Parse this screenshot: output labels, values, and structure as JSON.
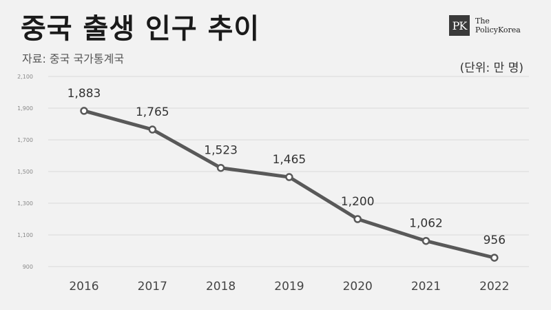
{
  "header": {
    "title": "중국 출생 인구 추이",
    "source": "자료: 중국 국가통계국",
    "unit": "(단위: 만 명)"
  },
  "logo": {
    "mark": "PK",
    "line1": "The",
    "line2": "PolicyKorea"
  },
  "chart_data": {
    "type": "line",
    "categories": [
      "2016",
      "2017",
      "2018",
      "2019",
      "2020",
      "2021",
      "2022"
    ],
    "series": [
      {
        "values": [
          1883,
          1765,
          1523,
          1465,
          1200,
          1062,
          956
        ]
      }
    ],
    "data_labels": [
      "1,883",
      "1,765",
      "1,523",
      "1,465",
      "1,200",
      "1,062",
      "956"
    ],
    "yticks": [
      900,
      1100,
      1300,
      1500,
      1700,
      1900,
      2100
    ],
    "ytick_labels": [
      "900",
      "1,100",
      "1,300",
      "1,500",
      "1,700",
      "1,900",
      "2,100"
    ],
    "ylim": [
      900,
      2100
    ],
    "grid": true,
    "colors": {
      "line": "#595959",
      "marker_fill": "#ffffff",
      "grid": "#d9d9d9"
    }
  }
}
